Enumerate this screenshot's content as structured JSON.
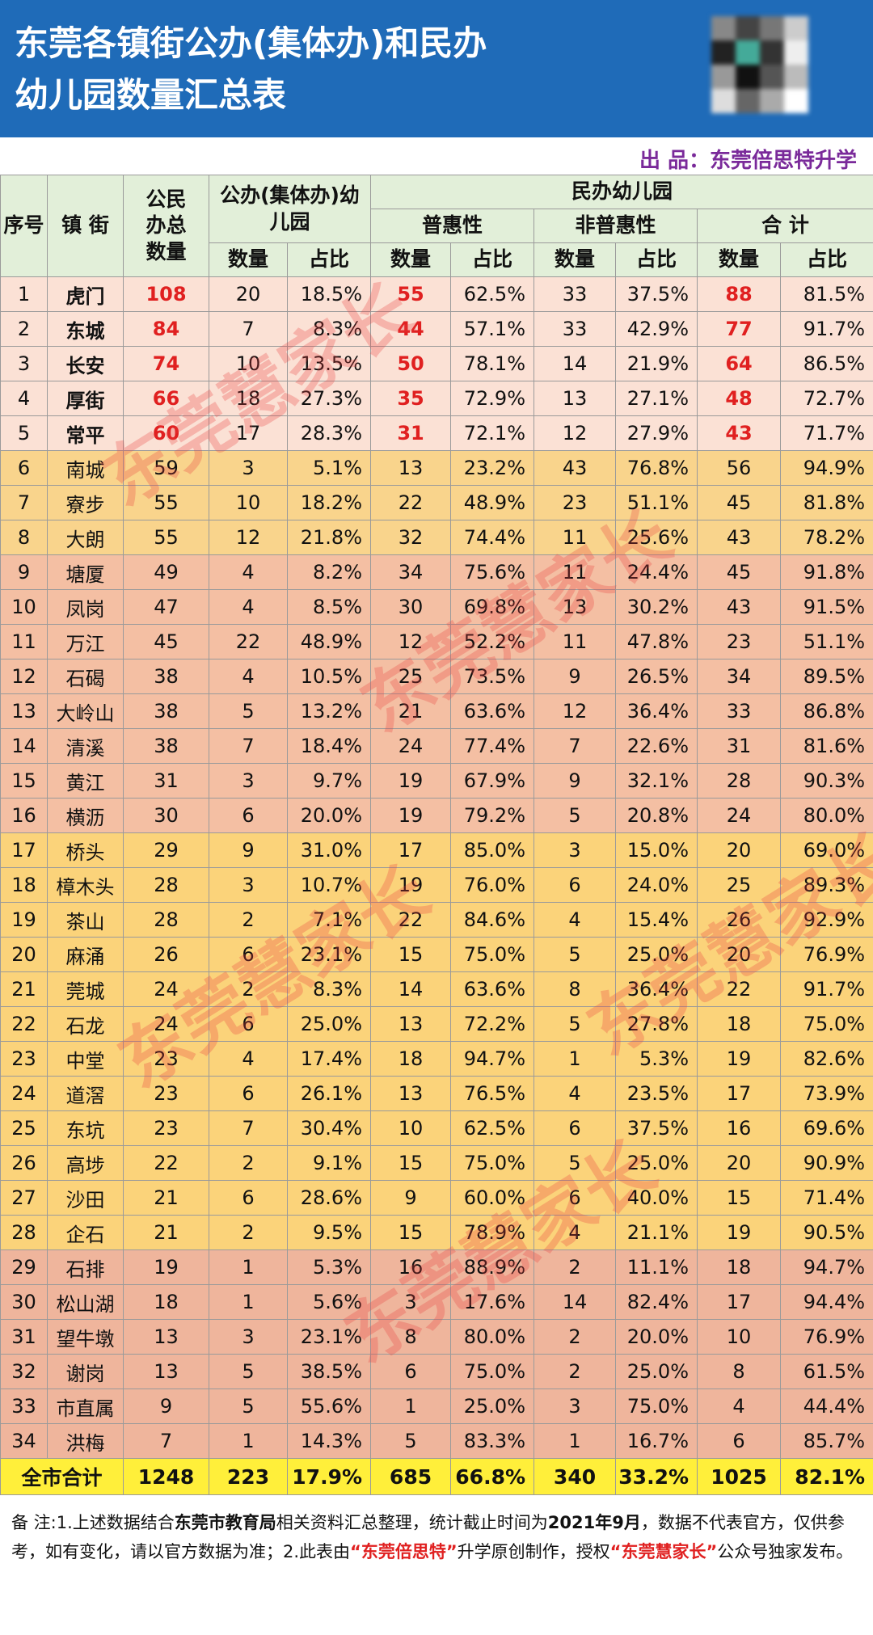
{
  "header": {
    "title_lines": [
      "东莞各镇街公办(集体办)和民办",
      "幼儿园数量汇总表"
    ],
    "producer": "出 品：东莞倍思特升学"
  },
  "table": {
    "headers": {
      "no": "序号",
      "town": "镇 街",
      "total": "公民办总数量",
      "public": "公办(集体办)幼儿园",
      "private": "民办幼儿园",
      "groups": [
        "普惠性",
        "非普惠性",
        "合 计"
      ],
      "sub": [
        "数量",
        "占比"
      ]
    },
    "rows": [
      [
        "1",
        "虎门",
        "108",
        "20",
        "18.5%",
        "55",
        "62.5%",
        "33",
        "37.5%",
        "88",
        "81.5%"
      ],
      [
        "2",
        "东城",
        "84",
        "7",
        "8.3%",
        "44",
        "57.1%",
        "33",
        "42.9%",
        "77",
        "91.7%"
      ],
      [
        "3",
        "长安",
        "74",
        "10",
        "13.5%",
        "50",
        "78.1%",
        "14",
        "21.9%",
        "64",
        "86.5%"
      ],
      [
        "4",
        "厚街",
        "66",
        "18",
        "27.3%",
        "35",
        "72.9%",
        "13",
        "27.1%",
        "48",
        "72.7%"
      ],
      [
        "5",
        "常平",
        "60",
        "17",
        "28.3%",
        "31",
        "72.1%",
        "12",
        "27.9%",
        "43",
        "71.7%"
      ],
      [
        "6",
        "南城",
        "59",
        "3",
        "5.1%",
        "13",
        "23.2%",
        "43",
        "76.8%",
        "56",
        "94.9%"
      ],
      [
        "7",
        "寮步",
        "55",
        "10",
        "18.2%",
        "22",
        "48.9%",
        "23",
        "51.1%",
        "45",
        "81.8%"
      ],
      [
        "8",
        "大朗",
        "55",
        "12",
        "21.8%",
        "32",
        "74.4%",
        "11",
        "25.6%",
        "43",
        "78.2%"
      ],
      [
        "9",
        "塘厦",
        "49",
        "4",
        "8.2%",
        "34",
        "75.6%",
        "11",
        "24.4%",
        "45",
        "91.8%"
      ],
      [
        "10",
        "凤岗",
        "47",
        "4",
        "8.5%",
        "30",
        "69.8%",
        "13",
        "30.2%",
        "43",
        "91.5%"
      ],
      [
        "11",
        "万江",
        "45",
        "22",
        "48.9%",
        "12",
        "52.2%",
        "11",
        "47.8%",
        "23",
        "51.1%"
      ],
      [
        "12",
        "石碣",
        "38",
        "4",
        "10.5%",
        "25",
        "73.5%",
        "9",
        "26.5%",
        "34",
        "89.5%"
      ],
      [
        "13",
        "大岭山",
        "38",
        "5",
        "13.2%",
        "21",
        "63.6%",
        "12",
        "36.4%",
        "33",
        "86.8%"
      ],
      [
        "14",
        "清溪",
        "38",
        "7",
        "18.4%",
        "24",
        "77.4%",
        "7",
        "22.6%",
        "31",
        "81.6%"
      ],
      [
        "15",
        "黄江",
        "31",
        "3",
        "9.7%",
        "19",
        "67.9%",
        "9",
        "32.1%",
        "28",
        "90.3%"
      ],
      [
        "16",
        "横沥",
        "30",
        "6",
        "20.0%",
        "19",
        "79.2%",
        "5",
        "20.8%",
        "24",
        "80.0%"
      ],
      [
        "17",
        "桥头",
        "29",
        "9",
        "31.0%",
        "17",
        "85.0%",
        "3",
        "15.0%",
        "20",
        "69.0%"
      ],
      [
        "18",
        "樟木头",
        "28",
        "3",
        "10.7%",
        "19",
        "76.0%",
        "6",
        "24.0%",
        "25",
        "89.3%"
      ],
      [
        "19",
        "茶山",
        "28",
        "2",
        "7.1%",
        "22",
        "84.6%",
        "4",
        "15.4%",
        "26",
        "92.9%"
      ],
      [
        "20",
        "麻涌",
        "26",
        "6",
        "23.1%",
        "15",
        "75.0%",
        "5",
        "25.0%",
        "20",
        "76.9%"
      ],
      [
        "21",
        "莞城",
        "24",
        "2",
        "8.3%",
        "14",
        "63.6%",
        "8",
        "36.4%",
        "22",
        "91.7%"
      ],
      [
        "22",
        "石龙",
        "24",
        "6",
        "25.0%",
        "13",
        "72.2%",
        "5",
        "27.8%",
        "18",
        "75.0%"
      ],
      [
        "23",
        "中堂",
        "23",
        "4",
        "17.4%",
        "18",
        "94.7%",
        "1",
        "5.3%",
        "19",
        "82.6%"
      ],
      [
        "24",
        "道滘",
        "23",
        "6",
        "26.1%",
        "13",
        "76.5%",
        "4",
        "23.5%",
        "17",
        "73.9%"
      ],
      [
        "25",
        "东坑",
        "23",
        "7",
        "30.4%",
        "10",
        "62.5%",
        "6",
        "37.5%",
        "16",
        "69.6%"
      ],
      [
        "26",
        "高埗",
        "22",
        "2",
        "9.1%",
        "15",
        "75.0%",
        "5",
        "25.0%",
        "20",
        "90.9%"
      ],
      [
        "27",
        "沙田",
        "21",
        "6",
        "28.6%",
        "9",
        "60.0%",
        "6",
        "40.0%",
        "15",
        "71.4%"
      ],
      [
        "28",
        "企石",
        "21",
        "2",
        "9.5%",
        "15",
        "78.9%",
        "4",
        "21.1%",
        "19",
        "90.5%"
      ],
      [
        "29",
        "石排",
        "19",
        "1",
        "5.3%",
        "16",
        "88.9%",
        "2",
        "11.1%",
        "18",
        "94.7%"
      ],
      [
        "30",
        "松山湖",
        "18",
        "1",
        "5.6%",
        "3",
        "17.6%",
        "14",
        "82.4%",
        "17",
        "94.4%"
      ],
      [
        "31",
        "望牛墩",
        "13",
        "3",
        "23.1%",
        "8",
        "80.0%",
        "2",
        "20.0%",
        "10",
        "76.9%"
      ],
      [
        "32",
        "谢岗",
        "13",
        "5",
        "38.5%",
        "6",
        "75.0%",
        "2",
        "25.0%",
        "8",
        "61.5%"
      ],
      [
        "33",
        "市直属",
        "9",
        "5",
        "55.6%",
        "1",
        "25.0%",
        "3",
        "75.0%",
        "4",
        "44.4%"
      ],
      [
        "34",
        "洪梅",
        "7",
        "1",
        "14.3%",
        "5",
        "83.3%",
        "1",
        "16.7%",
        "6",
        "85.7%"
      ]
    ],
    "total": [
      "全市合计",
      "1248",
      "223",
      "17.9%",
      "685",
      "66.8%",
      "340",
      "33.2%",
      "1025",
      "82.1%"
    ]
  },
  "footnote": [
    "备  注:1.上述数据结合",
    "东莞市教育局",
    "相关资料汇总整理，统计截止时间为",
    "2021年9月",
    "，数据不代表官方，仅供参考，如有变化，请以官方数据为准；2.此表由",
    "“东莞倍思特”",
    "升学原创制作，授权",
    "“东莞慧家长”",
    "公众号独家发布。"
  ],
  "watermark": "东莞慧家长"
}
